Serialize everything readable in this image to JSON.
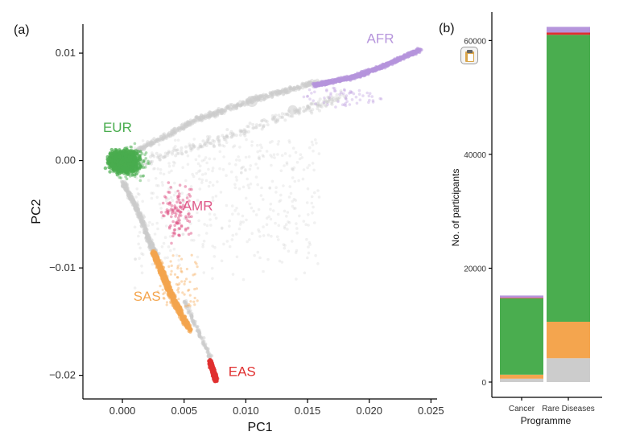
{
  "chart_data": [
    {
      "panel_label": "(a)",
      "type": "scatter",
      "xlabel": "PC1",
      "ylabel": "PC2",
      "xlim": [
        -0.0032,
        0.0255
      ],
      "ylim": [
        -0.0222,
        0.0127
      ],
      "x_ticks": [
        0.0,
        0.005,
        0.01,
        0.015,
        0.02,
        0.025
      ],
      "x_tick_labels": [
        "0.000",
        "0.005",
        "0.010",
        "0.015",
        "0.020",
        "0.025"
      ],
      "y_ticks": [
        0.01,
        0.0,
        -0.01,
        -0.02
      ],
      "y_tick_labels": [
        "0.01",
        "0.00",
        "−0.01",
        "−0.02"
      ],
      "grid": false,
      "groups": [
        {
          "label": "AFR",
          "color": "#b695dc",
          "label_at": [
            0.0209,
            0.0114
          ],
          "center": [
            0.0205,
            0.0084
          ],
          "path": [
            [
              0.0155,
              0.007
            ],
            [
              0.0185,
              0.0077
            ],
            [
              0.021,
              0.0087
            ],
            [
              0.0241,
              0.0103
            ]
          ]
        },
        {
          "label": "EUR",
          "color": "#4aad4f",
          "label_at": [
            -0.0004,
            0.0031
          ],
          "center": [
            0.0,
            0.0002
          ],
          "blob": [
            [
              -0.002,
              0.001
            ],
            [
              -0.0005,
              0.0014
            ],
            [
              0.0015,
              0.0013
            ],
            [
              0.002,
              0.0002
            ],
            [
              0.0012,
              -0.0014
            ],
            [
              0.0002,
              -0.0024
            ],
            [
              -0.0008,
              -0.0008
            ],
            [
              -0.0021,
              0.0003
            ]
          ]
        },
        {
          "label": "AMR",
          "color": "#e05a8a",
          "label_at": [
            0.0061,
            -0.0042
          ],
          "center": [
            0.0045,
            -0.0048
          ]
        },
        {
          "label": "SAS",
          "color": "#f4a54e",
          "label_at": [
            0.002,
            -0.0126
          ],
          "center": [
            0.0037,
            -0.0119
          ],
          "path": [
            [
              0.0025,
              -0.0085
            ],
            [
              0.0032,
              -0.0103
            ],
            [
              0.0038,
              -0.0121
            ],
            [
              0.0045,
              -0.0138
            ],
            [
              0.0055,
              -0.0158
            ]
          ]
        },
        {
          "label": "EAS",
          "color": "#e03030",
          "label_at": [
            0.0097,
            -0.0196
          ],
          "center": [
            0.0076,
            -0.0195
          ],
          "path": [
            [
              0.0071,
              -0.0187
            ],
            [
              0.0076,
              -0.0205
            ]
          ]
        },
        {
          "label": "",
          "color": "#cccccc",
          "center": [
            0.008,
            0.003
          ]
        }
      ]
    },
    {
      "panel_label": "(b)",
      "type": "bar",
      "stacked": true,
      "xlabel": "Programme",
      "ylabel": "No. of participants",
      "categories": [
        "Cancer",
        "Rare Diseases"
      ],
      "ylim": [
        0,
        65000
      ],
      "y_ticks": [
        0,
        20000,
        40000,
        60000
      ],
      "y_tick_labels": [
        "0",
        "20000",
        "40000",
        "60000"
      ],
      "series": [
        {
          "color": "#cccccc",
          "values": [
            600,
            4200
          ]
        },
        {
          "color": "#f4a54e",
          "values": [
            700,
            6400
          ]
        },
        {
          "color": "#4aad4f",
          "values": [
            13400,
            50400
          ]
        },
        {
          "color": "#e03030",
          "values": [
            100,
            400
          ]
        },
        {
          "color": "#b695dc",
          "values": [
            400,
            1000
          ]
        }
      ]
    }
  ],
  "icons": {
    "overlay": "clipboard-icon"
  }
}
